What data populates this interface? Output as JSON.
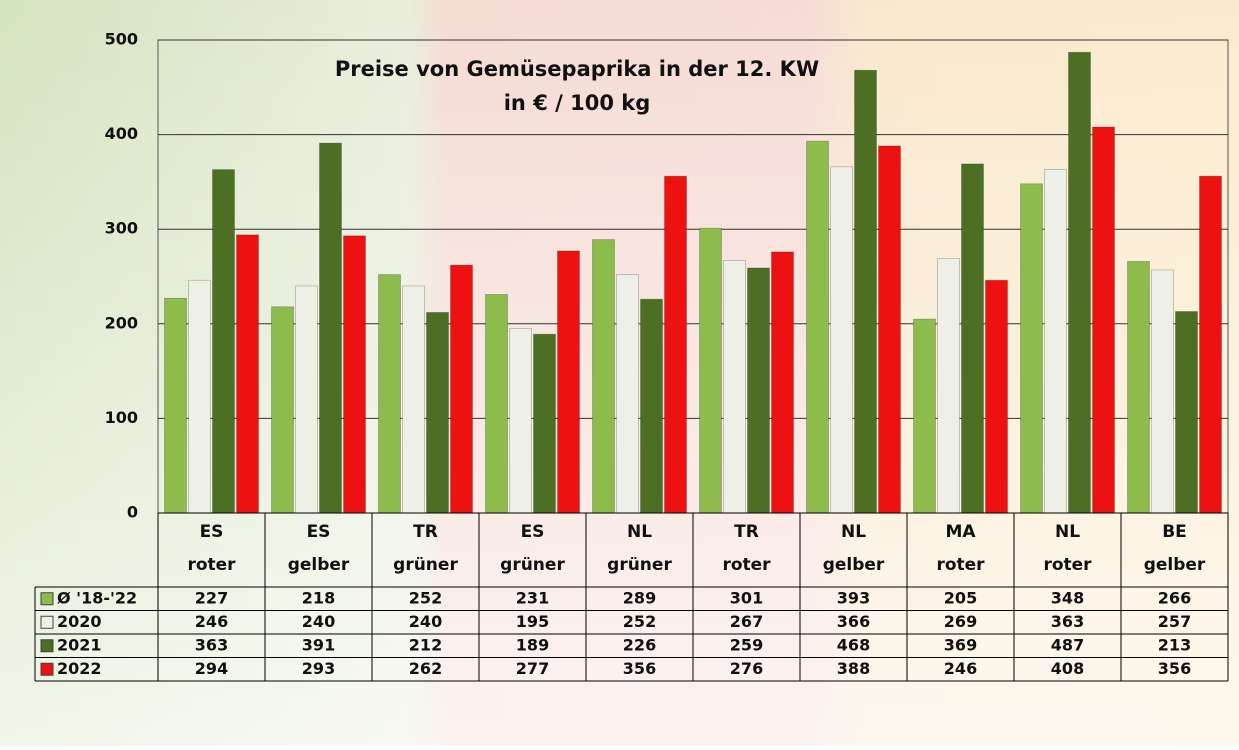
{
  "chart_data": {
    "type": "bar",
    "title": [
      "Preise von Gemüsepaprika in der 12. KW",
      "in € / 100 kg"
    ],
    "categories": [
      [
        "ES",
        "roter"
      ],
      [
        "ES",
        "gelber"
      ],
      [
        "TR",
        "grüner"
      ],
      [
        "ES",
        "grüner"
      ],
      [
        "NL",
        "grüner"
      ],
      [
        "TR",
        "roter"
      ],
      [
        "NL",
        "gelber"
      ],
      [
        "MA",
        "roter"
      ],
      [
        "NL",
        "roter"
      ],
      [
        "BE",
        "gelber"
      ]
    ],
    "series": [
      {
        "name": "Ø '18-'22",
        "color": "#8dbb4c",
        "values": [
          227,
          218,
          252,
          231,
          289,
          301,
          393,
          205,
          348,
          266
        ]
      },
      {
        "name": "2020",
        "color": "#eef0e8",
        "values": [
          246,
          240,
          240,
          195,
          252,
          267,
          366,
          269,
          363,
          257
        ]
      },
      {
        "name": "2021",
        "color": "#4d6f24",
        "values": [
          363,
          391,
          212,
          189,
          226,
          259,
          468,
          369,
          487,
          213
        ]
      },
      {
        "name": "2022",
        "color": "#ee1111",
        "values": [
          294,
          293,
          262,
          277,
          356,
          276,
          388,
          246,
          408,
          356
        ]
      }
    ],
    "ylim": [
      0,
      500
    ],
    "yticks": [
      0,
      100,
      200,
      300,
      400,
      500
    ],
    "grid": true
  }
}
